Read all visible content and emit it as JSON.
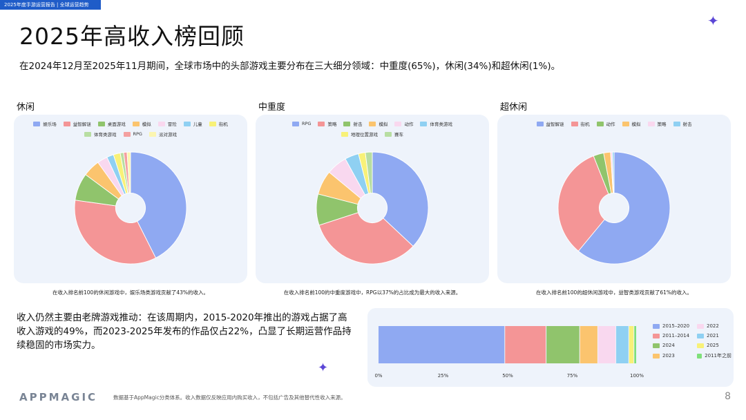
{
  "header": {
    "tag": "2025年度手游运营报告 | 全球运营趋势",
    "title": "2025年高收入榜回顾",
    "intro": "在2024年12月至2025年11月期间，全球市场中的头部游戏主要分布在三大细分领域：中重度(65%)，休闲(34%)和超休闲(1%)。"
  },
  "colors": {
    "blue": "#8fa9f2",
    "red": "#f49596",
    "green": "#90c46c",
    "orange": "#fbc46e",
    "pink": "#f9d8ef",
    "sky": "#8fd0f2",
    "yellow": "#f8f178",
    "lightgreen": "#b8dea2",
    "salmon": "#f4a0a0",
    "paleyellow": "#fbf5b0",
    "brightgreen": "#7fe07a",
    "accent": "#5b46d6"
  },
  "chart_data": [
    {
      "type": "pie",
      "title": "休闲",
      "legend": [
        {
          "name": "娱乐场",
          "color": "#8fa9f2"
        },
        {
          "name": "益智解谜",
          "color": "#f49596"
        },
        {
          "name": "桌面游戏",
          "color": "#90c46c"
        },
        {
          "name": "模拟",
          "color": "#fbc46e"
        },
        {
          "name": "冒险",
          "color": "#f9d8ef"
        },
        {
          "name": "儿童",
          "color": "#8fd0f2"
        },
        {
          "name": "街机",
          "color": "#f8f178"
        },
        {
          "name": "体育类游戏",
          "color": "#b8dea2"
        },
        {
          "name": "RPG",
          "color": "#f4a0a0"
        },
        {
          "name": "派对游戏",
          "color": "#fbf5b0"
        }
      ],
      "values": [
        43,
        35,
        8,
        5,
        3,
        2,
        2,
        1,
        1,
        1
      ],
      "caption": "在收入排名前100的休闲游戏中，娱乐场类游戏贡献了43%的收入。"
    },
    {
      "type": "pie",
      "title": "中重度",
      "legend": [
        {
          "name": "RPG",
          "color": "#8fa9f2"
        },
        {
          "name": "策略",
          "color": "#f49596"
        },
        {
          "name": "射击",
          "color": "#90c46c"
        },
        {
          "name": "模拟",
          "color": "#fbc46e"
        },
        {
          "name": "动作",
          "color": "#f9d8ef"
        },
        {
          "name": "体育类游戏",
          "color": "#8fd0f2"
        },
        {
          "name": "地理位置游戏",
          "color": "#f8f178"
        },
        {
          "name": "赛车",
          "color": "#b8dea2"
        }
      ],
      "values": [
        37,
        33,
        9,
        7,
        6,
        4,
        2,
        2
      ],
      "caption": "在收入排名前100的中重度游戏中，RPG以37%的占比成为最大的收入来源。"
    },
    {
      "type": "pie",
      "title": "超休闲",
      "legend": [
        {
          "name": "益智解谜",
          "color": "#8fa9f2"
        },
        {
          "name": "街机",
          "color": "#f49596"
        },
        {
          "name": "动作",
          "color": "#90c46c"
        },
        {
          "name": "模拟",
          "color": "#fbc46e"
        },
        {
          "name": "策略",
          "color": "#f9d8ef"
        },
        {
          "name": "射击",
          "color": "#8fd0f2"
        }
      ],
      "values": [
        61,
        33,
        3,
        2,
        0.5,
        0.5
      ],
      "caption": "在收入排名前100的超休闲游戏中，益智类游戏贡献了61%的收入。"
    },
    {
      "type": "bar",
      "orientation": "horizontal-stacked",
      "series": [
        {
          "name": "2015–2020",
          "value": 49,
          "color": "#8fa9f2"
        },
        {
          "name": "2011–2014",
          "value": 16,
          "color": "#f49596"
        },
        {
          "name": "2024",
          "value": 13,
          "color": "#90c46c"
        },
        {
          "name": "2023",
          "value": 7,
          "color": "#fbc46e"
        },
        {
          "name": "2022",
          "value": 7,
          "color": "#f9d8ef"
        },
        {
          "name": "2021",
          "value": 5,
          "color": "#8fd0f2"
        },
        {
          "name": "2025",
          "value": 2,
          "color": "#f8f178"
        },
        {
          "name": "2011年之前",
          "value": 1,
          "color": "#7fe07a"
        }
      ],
      "xticks": [
        "0%",
        "25%",
        "50%",
        "75%",
        "100%"
      ],
      "xlim": [
        0,
        100
      ]
    }
  ],
  "bottom": {
    "text": "收入仍然主要由老牌游戏推动：在该周期内，2015-2020年推出的游戏占据了高收入游戏的49%，而2023-2025年发布的作品仅占22%，凸显了长期运营作品持续稳固的市场实力。"
  },
  "footer": {
    "logo": "APPMAGIC",
    "note": "数据基于AppMagic分类体系。收入数据仅反映应用内购买收入，不包括广告及其他替代性收入来源。",
    "page": "8"
  }
}
